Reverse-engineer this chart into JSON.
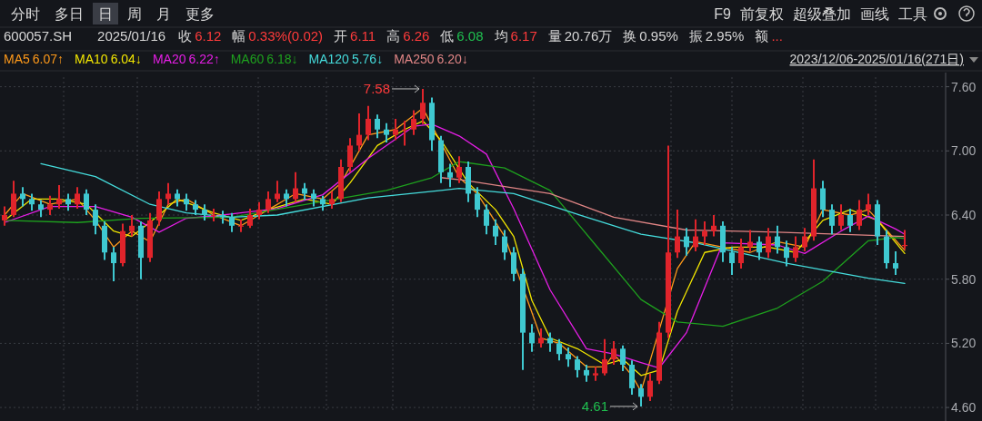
{
  "chart_data": {
    "type": "candlestick",
    "title": "600057.SH",
    "subtitle": "2025/01/16",
    "legend": "top left",
    "grid": true,
    "categories": [
      null,
      null,
      null,
      null,
      null,
      null,
      null,
      null,
      null,
      null,
      null,
      null,
      null,
      null,
      null,
      null,
      null,
      null,
      null,
      null,
      null,
      null,
      null,
      null,
      null,
      null,
      null,
      null,
      null,
      null,
      null,
      null,
      null,
      null,
      null,
      null,
      null,
      null,
      null,
      null,
      null,
      null,
      null,
      null,
      null,
      null,
      null,
      null,
      null,
      null,
      null,
      null,
      null,
      null,
      null,
      null,
      null,
      null,
      null,
      null,
      null,
      null,
      null,
      null,
      null,
      null,
      null,
      null,
      null,
      null,
      null,
      null,
      null,
      null,
      null,
      null,
      null,
      null,
      null,
      null,
      null,
      null,
      null,
      null,
      null,
      null,
      null,
      null,
      null,
      null,
      null,
      null,
      null,
      null,
      null,
      null,
      null,
      null,
      null,
      null
    ],
    "ohlc": [
      [
        6.35,
        6.48,
        6.3,
        6.4
      ],
      [
        6.4,
        6.72,
        6.38,
        6.6
      ],
      [
        6.6,
        6.66,
        6.48,
        6.55
      ],
      [
        6.55,
        6.6,
        6.44,
        6.5
      ],
      [
        6.5,
        6.54,
        6.38,
        6.45
      ],
      [
        6.45,
        6.58,
        6.4,
        6.5
      ],
      [
        6.5,
        6.68,
        6.46,
        6.55
      ],
      [
        6.55,
        6.6,
        6.44,
        6.5
      ],
      [
        6.5,
        6.66,
        6.46,
        6.6
      ],
      [
        6.6,
        6.64,
        6.4,
        6.45
      ],
      [
        6.45,
        6.5,
        6.22,
        6.3
      ],
      [
        6.3,
        6.34,
        5.98,
        6.05
      ],
      [
        6.05,
        6.1,
        5.78,
        5.95
      ],
      [
        5.95,
        6.32,
        5.92,
        6.25
      ],
      [
        6.25,
        6.4,
        6.2,
        6.3
      ],
      [
        6.3,
        6.34,
        5.8,
        6.0
      ],
      [
        6.0,
        6.42,
        5.96,
        6.35
      ],
      [
        6.35,
        6.62,
        6.3,
        6.55
      ],
      [
        6.55,
        6.7,
        6.5,
        6.6
      ],
      [
        6.6,
        6.64,
        6.48,
        6.55
      ],
      [
        6.55,
        6.6,
        6.44,
        6.5
      ],
      [
        6.5,
        6.54,
        6.4,
        6.45
      ],
      [
        6.45,
        6.5,
        6.35,
        6.4
      ],
      [
        6.4,
        6.46,
        6.34,
        6.4
      ],
      [
        6.4,
        6.44,
        6.32,
        6.38
      ],
      [
        6.38,
        6.42,
        6.24,
        6.3
      ],
      [
        6.3,
        6.36,
        6.24,
        6.3
      ],
      [
        6.3,
        6.46,
        6.28,
        6.4
      ],
      [
        6.4,
        6.52,
        6.36,
        6.45
      ],
      [
        6.45,
        6.62,
        6.42,
        6.55
      ],
      [
        6.55,
        6.72,
        6.52,
        6.6
      ],
      [
        6.6,
        6.64,
        6.48,
        6.55
      ],
      [
        6.55,
        6.8,
        6.52,
        6.65
      ],
      [
        6.65,
        6.7,
        6.54,
        6.6
      ],
      [
        6.6,
        6.64,
        6.48,
        6.55
      ],
      [
        6.55,
        6.58,
        6.44,
        6.5
      ],
      [
        6.5,
        6.62,
        6.46,
        6.55
      ],
      [
        6.55,
        6.92,
        6.52,
        6.85
      ],
      [
        6.85,
        7.12,
        6.8,
        7.05
      ],
      [
        7.05,
        7.35,
        7.0,
        7.15
      ],
      [
        7.15,
        7.42,
        7.1,
        7.3
      ],
      [
        7.3,
        7.34,
        7.12,
        7.2
      ],
      [
        7.2,
        7.26,
        7.08,
        7.15
      ],
      [
        7.15,
        7.3,
        7.1,
        7.2
      ],
      [
        7.2,
        7.28,
        7.05,
        7.2
      ],
      [
        7.2,
        7.38,
        7.15,
        7.3
      ],
      [
        7.3,
        7.58,
        7.25,
        7.45
      ],
      [
        7.45,
        7.5,
        7.0,
        7.1
      ],
      [
        7.1,
        7.14,
        6.7,
        6.8
      ],
      [
        6.8,
        6.88,
        6.66,
        6.75
      ],
      [
        6.75,
        6.95,
        6.7,
        6.85
      ],
      [
        6.85,
        6.9,
        6.52,
        6.6
      ],
      [
        6.6,
        6.66,
        6.38,
        6.45
      ],
      [
        6.45,
        6.5,
        6.22,
        6.3
      ],
      [
        6.3,
        6.36,
        6.12,
        6.2
      ],
      [
        6.2,
        6.26,
        5.98,
        6.05
      ],
      [
        6.05,
        6.1,
        5.78,
        5.85
      ],
      [
        5.85,
        5.9,
        4.95,
        5.3
      ],
      [
        5.3,
        5.38,
        5.12,
        5.2
      ],
      [
        5.2,
        5.34,
        5.16,
        5.25
      ],
      [
        5.25,
        5.3,
        5.12,
        5.2
      ],
      [
        5.2,
        5.24,
        5.04,
        5.1
      ],
      [
        5.1,
        5.16,
        4.98,
        5.05
      ],
      [
        5.05,
        5.08,
        4.88,
        4.95
      ],
      [
        4.95,
        5.0,
        4.84,
        4.9
      ],
      [
        4.9,
        4.98,
        4.85,
        4.92
      ],
      [
        4.92,
        5.24,
        4.9,
        5.05
      ],
      [
        5.05,
        5.22,
        5.0,
        5.15
      ],
      [
        5.15,
        5.18,
        4.94,
        5.0
      ],
      [
        5.0,
        5.04,
        4.72,
        4.78
      ],
      [
        4.78,
        4.82,
        4.61,
        4.7
      ],
      [
        4.7,
        4.92,
        4.66,
        4.85
      ],
      [
        4.85,
        5.4,
        4.82,
        5.3
      ],
      [
        5.3,
        7.05,
        5.25,
        6.05
      ],
      [
        6.05,
        6.45,
        6.0,
        6.2
      ],
      [
        6.2,
        6.28,
        6.02,
        6.1
      ],
      [
        6.1,
        6.36,
        6.06,
        6.2
      ],
      [
        6.2,
        6.34,
        6.12,
        6.25
      ],
      [
        6.25,
        6.4,
        6.2,
        6.3
      ],
      [
        6.3,
        6.34,
        5.96,
        6.05
      ],
      [
        6.05,
        6.1,
        5.84,
        5.95
      ],
      [
        5.95,
        6.18,
        5.9,
        6.1
      ],
      [
        6.1,
        6.26,
        6.06,
        6.15
      ],
      [
        6.15,
        6.2,
        5.98,
        6.05
      ],
      [
        6.05,
        6.28,
        6.0,
        6.2
      ],
      [
        6.2,
        6.3,
        6.04,
        6.1
      ],
      [
        6.1,
        6.16,
        5.92,
        6.0
      ],
      [
        6.0,
        6.2,
        5.96,
        6.1
      ],
      [
        6.1,
        6.28,
        6.06,
        6.2
      ],
      [
        6.2,
        6.92,
        6.16,
        6.65
      ],
      [
        6.65,
        6.72,
        6.38,
        6.45
      ],
      [
        6.45,
        6.5,
        6.22,
        6.3
      ],
      [
        6.3,
        6.5,
        6.26,
        6.4
      ],
      [
        6.4,
        6.46,
        6.24,
        6.3
      ],
      [
        6.3,
        6.54,
        6.26,
        6.45
      ],
      [
        6.45,
        6.6,
        6.4,
        6.5
      ],
      [
        6.5,
        6.54,
        6.12,
        6.2
      ],
      [
        6.2,
        6.26,
        5.9,
        5.95
      ],
      [
        5.95,
        6.06,
        5.84,
        5.9
      ],
      [
        6.11,
        6.26,
        6.08,
        6.12
      ]
    ],
    "colors": [
      "#e0242b",
      "#e0242b",
      "#3fc8d0",
      "#3fc8d0",
      "#3fc8d0",
      "#e0242b",
      "#e0242b",
      "#3fc8d0",
      "#e0242b",
      "#3fc8d0",
      "#3fc8d0",
      "#3fc8d0",
      "#3fc8d0",
      "#e0242b",
      "#e0242b",
      "#3fc8d0",
      "#e0242b",
      "#e0242b",
      "#e0242b",
      "#3fc8d0",
      "#3fc8d0",
      "#3fc8d0",
      "#3fc8d0",
      "#e0242b",
      "#3fc8d0",
      "#3fc8d0",
      "#e0242b",
      "#e0242b",
      "#e0242b",
      "#e0242b",
      "#e0242b",
      "#3fc8d0",
      "#e0242b",
      "#3fc8d0",
      "#3fc8d0",
      "#3fc8d0",
      "#e0242b",
      "#e0242b",
      "#e0242b",
      "#e0242b",
      "#e0242b",
      "#3fc8d0",
      "#3fc8d0",
      "#e0242b",
      "#e0242b",
      "#e0242b",
      "#e0242b",
      "#3fc8d0",
      "#3fc8d0",
      "#3fc8d0",
      "#e0242b",
      "#3fc8d0",
      "#3fc8d0",
      "#3fc8d0",
      "#3fc8d0",
      "#3fc8d0",
      "#3fc8d0",
      "#3fc8d0",
      "#3fc8d0",
      "#e0242b",
      "#3fc8d0",
      "#3fc8d0",
      "#3fc8d0",
      "#3fc8d0",
      "#3fc8d0",
      "#e0242b",
      "#e0242b",
      "#e0242b",
      "#3fc8d0",
      "#3fc8d0",
      "#3fc8d0",
      "#e0242b",
      "#e0242b",
      "#e0242b",
      "#e0242b",
      "#3fc8d0",
      "#e0242b",
      "#e0242b",
      "#e0242b",
      "#3fc8d0",
      "#3fc8d0",
      "#e0242b",
      "#e0242b",
      "#3fc8d0",
      "#e0242b",
      "#3fc8d0",
      "#3fc8d0",
      "#e0242b",
      "#e0242b",
      "#e0242b",
      "#3fc8d0",
      "#3fc8d0",
      "#e0242b",
      "#3fc8d0",
      "#e0242b",
      "#e0242b",
      "#3fc8d0",
      "#3fc8d0",
      "#3fc8d0",
      "#e0242b"
    ],
    "series": [
      {
        "name": "MA5",
        "type": "line",
        "color": "#ff9a1a",
        "values": [
          6.4,
          null,
          6.6,
          null,
          null,
          6.5,
          null,
          null,
          6.55,
          null,
          6.35,
          null,
          6.1,
          null,
          6.25,
          null,
          6.15,
          null,
          6.5,
          null,
          6.55,
          null,
          null,
          6.4,
          null,
          null,
          6.3,
          null,
          null,
          6.45,
          null,
          null,
          6.6,
          null,
          null,
          6.55,
          null,
          6.7,
          null,
          null,
          7.15,
          null,
          null,
          7.2,
          null,
          null,
          7.4,
          null,
          null,
          null,
          6.75,
          null,
          6.6,
          null,
          null,
          6.2,
          null,
          null,
          null,
          5.25,
          null,
          5.2,
          null,
          null,
          4.98,
          null,
          4.98,
          5.1,
          null,
          4.9,
          4.75,
          null,
          null,
          null,
          5.9,
          null,
          6.15,
          null,
          null,
          6.1,
          null,
          null,
          6.05,
          null,
          null,
          6.15,
          null,
          null,
          6.1,
          null,
          6.45,
          null,
          null,
          6.4,
          null,
          6.45,
          null,
          null,
          null,
          6.07
        ]
      },
      {
        "name": "MA10",
        "type": "line",
        "color": "#f2e600",
        "values": [
          6.35,
          null,
          null,
          6.55,
          null,
          null,
          6.55,
          null,
          null,
          6.5,
          null,
          null,
          6.25,
          null,
          6.2,
          null,
          null,
          6.4,
          null,
          6.55,
          null,
          null,
          null,
          6.42,
          null,
          null,
          6.35,
          null,
          null,
          6.45,
          null,
          null,
          null,
          6.55,
          null,
          null,
          6.5,
          null,
          6.7,
          null,
          null,
          7.05,
          null,
          null,
          7.2,
          null,
          7.28,
          null,
          7.1,
          null,
          null,
          6.7,
          null,
          null,
          6.45,
          null,
          6.2,
          null,
          5.6,
          null,
          5.25,
          null,
          null,
          5.15,
          null,
          null,
          5.0,
          null,
          5.05,
          null,
          4.9,
          null,
          4.95,
          null,
          5.5,
          null,
          null,
          6.05,
          null,
          null,
          6.1,
          null,
          null,
          null,
          6.1,
          null,
          null,
          6.05,
          null,
          null,
          6.35,
          null,
          null,
          6.45,
          null,
          null,
          6.35,
          null,
          null,
          6.04
        ]
      },
      {
        "name": "MA20",
        "type": "line",
        "color": "#e61ee6",
        "values": [
          6.33,
          null,
          null,
          null,
          null,
          6.48,
          null,
          null,
          null,
          null,
          6.48,
          null,
          null,
          null,
          6.38,
          null,
          null,
          6.24,
          null,
          null,
          6.37,
          null,
          null,
          null,
          6.4,
          null,
          null,
          null,
          null,
          null,
          6.46,
          null,
          null,
          null,
          null,
          6.59,
          null,
          null,
          null,
          null,
          6.93,
          null,
          null,
          null,
          null,
          7.23,
          null,
          7.25,
          null,
          null,
          7.14,
          null,
          null,
          6.97,
          null,
          null,
          6.46,
          null,
          null,
          null,
          5.7,
          null,
          null,
          null,
          5.15,
          null,
          null,
          5.1,
          null,
          null,
          5.02,
          null,
          4.97,
          null,
          null,
          5.3,
          null,
          null,
          null,
          6.14,
          null,
          null,
          null,
          null,
          null,
          6.12,
          null,
          null,
          6.04,
          null,
          null,
          null,
          6.25,
          null,
          null,
          6.39,
          null,
          null,
          6.27,
          6.22
        ]
      },
      {
        "name": "MA60",
        "type": "line",
        "color": "#1ea01e",
        "values": [
          6.35,
          null,
          null,
          null,
          null,
          null,
          null,
          null,
          6.33,
          null,
          null,
          null,
          null,
          null,
          null,
          6.37,
          null,
          null,
          null,
          null,
          null,
          null,
          null,
          null,
          null,
          6.38,
          null,
          null,
          null,
          null,
          null,
          null,
          null,
          null,
          null,
          null,
          null,
          null,
          null,
          null,
          null,
          null,
          6.63,
          null,
          null,
          null,
          null,
          6.75,
          null,
          null,
          6.9,
          null,
          null,
          null,
          null,
          6.84,
          null,
          null,
          null,
          null,
          6.63,
          null,
          null,
          null,
          null,
          6.12,
          null,
          null,
          null,
          null,
          5.61,
          null,
          null,
          null,
          5.4,
          null,
          null,
          null,
          null,
          5.36,
          null,
          null,
          null,
          null,
          null,
          5.53,
          null,
          null,
          null,
          null,
          5.78,
          null,
          null,
          null,
          null,
          6.16,
          null,
          null,
          6.19,
          6.18
        ]
      },
      {
        "name": "MA120",
        "type": "line",
        "color": "#45dcdc",
        "values": [
          null,
          null,
          null,
          null,
          6.88,
          null,
          null,
          null,
          null,
          null,
          6.76,
          null,
          null,
          null,
          null,
          null,
          6.5,
          null,
          null,
          null,
          6.42,
          null,
          null,
          null,
          null,
          6.38,
          null,
          null,
          null,
          null,
          6.4,
          null,
          null,
          null,
          null,
          null,
          null,
          null,
          null,
          null,
          6.56,
          null,
          null,
          null,
          null,
          null,
          null,
          null,
          6.63,
          null,
          6.65,
          null,
          null,
          null,
          null,
          null,
          6.6,
          null,
          null,
          null,
          null,
          null,
          null,
          null,
          6.38,
          null,
          null,
          null,
          null,
          null,
          6.22,
          null,
          null,
          null,
          null,
          null,
          6.14,
          null,
          null,
          null,
          null,
          null,
          null,
          null,
          null,
          null,
          5.95,
          null,
          null,
          null,
          null,
          null,
          null,
          null,
          null,
          5.81,
          null,
          null,
          null,
          5.76
        ]
      },
      {
        "name": "MA250",
        "type": "line",
        "color": "#e08585",
        "values": [
          null,
          null,
          null,
          null,
          null,
          null,
          null,
          null,
          null,
          null,
          null,
          null,
          null,
          null,
          null,
          null,
          null,
          null,
          null,
          null,
          null,
          null,
          null,
          null,
          null,
          null,
          null,
          null,
          null,
          null,
          null,
          null,
          null,
          null,
          null,
          null,
          null,
          null,
          null,
          null,
          null,
          null,
          null,
          null,
          null,
          null,
          null,
          null,
          6.75,
          null,
          null,
          6.72,
          null,
          null,
          null,
          null,
          null,
          null,
          null,
          null,
          6.6,
          null,
          null,
          null,
          null,
          null,
          null,
          6.38,
          null,
          null,
          null,
          null,
          null,
          null,
          null,
          6.26,
          null,
          null,
          null,
          null,
          null,
          null,
          null,
          null,
          null,
          6.24,
          null,
          null,
          null,
          null,
          null,
          null,
          null,
          null,
          null,
          null,
          null,
          null,
          null,
          6.2
        ]
      }
    ],
    "ylim": [
      4.55,
      7.69
    ],
    "yticks": [
      {
        "value": 7.6,
        "label": "7.60"
      },
      {
        "value": 7.0,
        "label": "7.00"
      },
      {
        "value": 6.4,
        "label": "6.40"
      },
      {
        "value": 5.8,
        "label": "5.80"
      },
      {
        "value": 5.2,
        "label": "5.20"
      },
      {
        "value": 4.6,
        "label": "4.60"
      }
    ],
    "annotations": [
      "分时",
      "多日",
      "日",
      "周",
      "月",
      "更多",
      "F9",
      "前复权",
      "超级叠加",
      "画线",
      "工具",
      "收",
      "6.12",
      "幅",
      "0.33%(0.02)",
      "开",
      "6.11",
      "高",
      "6.26",
      "低",
      "6.08",
      "均",
      "6.17",
      "量",
      "20.76万",
      "换",
      "0.95%",
      "振",
      "2.95%",
      "额",
      "...",
      "6.07↑",
      "6.04↓",
      "6.22↑",
      "6.18↓",
      "5.76↓",
      "6.20↓",
      "2023/12/06-2025/01/16(271日)",
      "7.58",
      "4.61"
    ]
  }
}
